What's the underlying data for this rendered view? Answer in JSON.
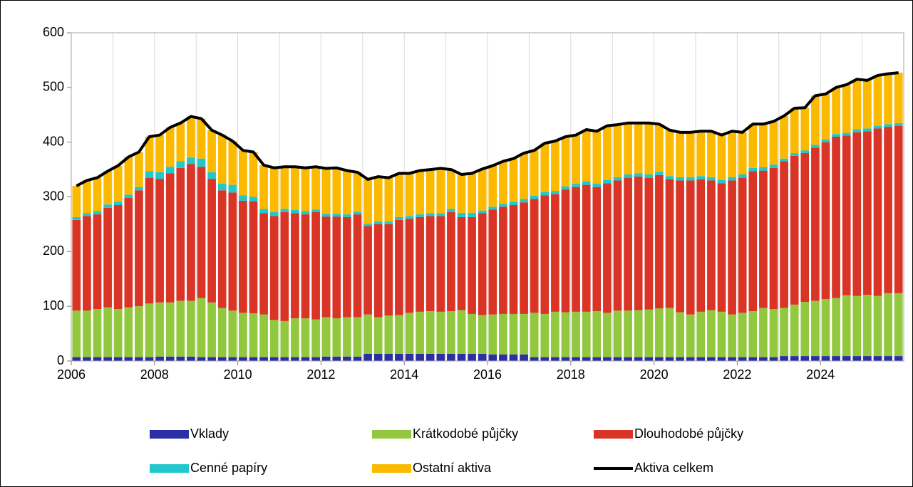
{
  "chart_data": {
    "type": "bar",
    "stacked": true,
    "categories": [
      "2006",
      null,
      null,
      null,
      null,
      null,
      null,
      null,
      "2008",
      null,
      null,
      null,
      null,
      null,
      null,
      null,
      "2010",
      null,
      null,
      null,
      null,
      null,
      null,
      null,
      "2012",
      null,
      null,
      null,
      null,
      null,
      null,
      null,
      "2014",
      null,
      null,
      null,
      null,
      null,
      null,
      null,
      "2016",
      null,
      null,
      null,
      null,
      null,
      null,
      null,
      "2018",
      null,
      null,
      null,
      null,
      null,
      null,
      null,
      "2020",
      null,
      null,
      null,
      null,
      null,
      null,
      null,
      "2022",
      null,
      null,
      null,
      null,
      null,
      null,
      null,
      "2024",
      null,
      null,
      null,
      null,
      null,
      null,
      null
    ],
    "ylim": [
      0,
      600
    ],
    "yticks": [
      0,
      100,
      200,
      300,
      400,
      500,
      600
    ],
    "series": [
      {
        "name": "Vklady",
        "color": "#2a2fa6",
        "values": [
          7,
          7,
          7,
          7,
          7,
          7,
          7,
          7,
          8,
          8,
          8,
          8,
          7,
          7,
          7,
          7,
          7,
          7,
          7,
          7,
          7,
          7,
          7,
          7,
          8,
          8,
          8,
          8,
          13,
          13,
          13,
          13,
          13,
          13,
          13,
          13,
          13,
          13,
          13,
          13,
          12,
          12,
          12,
          12,
          7,
          7,
          7,
          7,
          7,
          7,
          7,
          7,
          7,
          7,
          7,
          7,
          7,
          7,
          7,
          7,
          7,
          7,
          7,
          7,
          7,
          7,
          7,
          7,
          9,
          9,
          9,
          9,
          9,
          9,
          9,
          9,
          9,
          9,
          9,
          9
        ]
      },
      {
        "name": "Krátkodobé půjčky",
        "color": "#92c83e",
        "values": [
          85,
          85,
          88,
          91,
          88,
          91,
          93,
          98,
          99,
          99,
          102,
          102,
          108,
          100,
          90,
          85,
          81,
          80,
          78,
          68,
          66,
          71,
          71,
          69,
          72,
          70,
          72,
          72,
          72,
          67,
          70,
          71,
          75,
          77,
          78,
          77,
          78,
          80,
          73,
          71,
          73,
          74,
          74,
          74,
          81,
          79,
          83,
          82,
          83,
          83,
          84,
          81,
          85,
          85,
          86,
          87,
          89,
          90,
          82,
          78,
          83,
          86,
          83,
          78,
          81,
          84,
          90,
          88,
          88,
          94,
          99,
          101,
          104,
          106,
          111,
          110,
          112,
          110,
          115,
          115
        ]
      },
      {
        "name": "Dlouhodobé půjčky",
        "color": "#d93426",
        "values": [
          166,
          173,
          173,
          182,
          190,
          200,
          212,
          230,
          226,
          236,
          243,
          250,
          240,
          226,
          215,
          216,
          205,
          205,
          185,
          190,
          199,
          192,
          190,
          196,
          184,
          186,
          183,
          188,
          162,
          170,
          167,
          174,
          172,
          173,
          174,
          175,
          181,
          170,
          177,
          186,
          192,
          196,
          199,
          204,
          208,
          217,
          215,
          224,
          228,
          232,
          227,
          237,
          238,
          243,
          244,
          241,
          244,
          235,
          241,
          245,
          242,
          237,
          235,
          245,
          247,
          256,
          251,
          258,
          268,
          272,
          272,
          280,
          287,
          295,
          292,
          299,
          299,
          306,
          304,
          306
        ]
      },
      {
        "name": "Cenné papíry",
        "color": "#22c7cc",
        "values": [
          5,
          5,
          6,
          6,
          6,
          6,
          6,
          12,
          12,
          12,
          12,
          12,
          15,
          12,
          12,
          14,
          10,
          8,
          8,
          7,
          6,
          6,
          6,
          5,
          5,
          5,
          5,
          5,
          4,
          5,
          5,
          5,
          5,
          5,
          5,
          5,
          6,
          8,
          8,
          5,
          5,
          5,
          6,
          6,
          6,
          6,
          6,
          6,
          6,
          6,
          6,
          6,
          6,
          6,
          6,
          6,
          6,
          6,
          6,
          6,
          6,
          6,
          6,
          6,
          6,
          6,
          6,
          6,
          5,
          5,
          5,
          5,
          5,
          5,
          5,
          5,
          5,
          5,
          5,
          5
        ]
      },
      {
        "name": "Ostatní aktiva",
        "color": "#fbb900",
        "values": [
          57,
          60,
          61,
          61,
          66,
          69,
          64,
          63,
          68,
          72,
          70,
          75,
          73,
          77,
          89,
          80,
          82,
          82,
          80,
          81,
          77,
          79,
          79,
          78,
          83,
          84,
          80,
          72,
          81,
          82,
          80,
          80,
          78,
          80,
          80,
          82,
          72,
          70,
          72,
          76,
          75,
          78,
          79,
          84,
          83,
          89,
          91,
          91,
          89,
          95,
          96,
          99,
          96,
          94,
          92,
          94,
          87,
          84,
          82,
          82,
          82,
          84,
          82,
          84,
          77,
          80,
          79,
          79,
          78,
          82,
          78,
          90,
          83,
          85,
          88,
          92,
          88,
          92,
          92,
          92
        ]
      },
      {
        "name": "Aktiva celkem",
        "type": "line",
        "color": "#000000",
        "values": [
          320,
          330,
          335,
          347,
          357,
          373,
          382,
          410,
          413,
          427,
          435,
          447,
          443,
          422,
          413,
          402,
          385,
          382,
          358,
          353,
          355,
          355,
          353,
          355,
          352,
          353,
          348,
          345,
          332,
          337,
          335,
          343,
          343,
          348,
          350,
          352,
          350,
          341,
          343,
          351,
          357,
          365,
          370,
          380,
          385,
          398,
          402,
          410,
          413,
          423,
          420,
          430,
          432,
          435,
          435,
          435,
          433,
          422,
          418,
          418,
          420,
          420,
          413,
          420,
          418,
          433,
          433,
          438,
          448,
          462,
          463,
          485,
          488,
          500,
          505,
          515,
          513,
          522,
          525,
          527
        ]
      }
    ]
  }
}
